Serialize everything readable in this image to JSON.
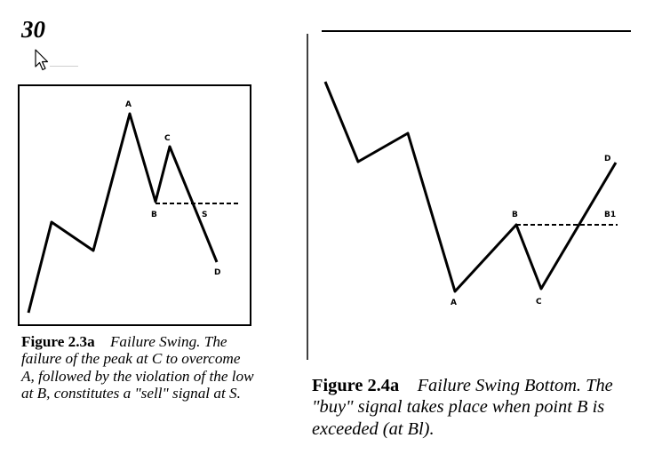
{
  "page": {
    "number": "30"
  },
  "figure_a": {
    "number": "Figure 2.3a",
    "title": "Failure Swing.",
    "caption": "The failure of the peak at C to overcome A, followed by the violation of the low at B, constitutes a \"sell\" signal at S.",
    "point_labels": {
      "A": "A",
      "B": "B",
      "C": "C",
      "S": "S",
      "D": "D"
    }
  },
  "figure_b": {
    "number": "Figure 2.4a",
    "title": "Failure Swing",
    "caption": "Bottom. The \"buy\" signal takes place when point B is exceeded (at Bl).",
    "point_labels": {
      "A": "A",
      "B": "B",
      "C": "C",
      "B1": "B1",
      "D": "D"
    }
  }
}
